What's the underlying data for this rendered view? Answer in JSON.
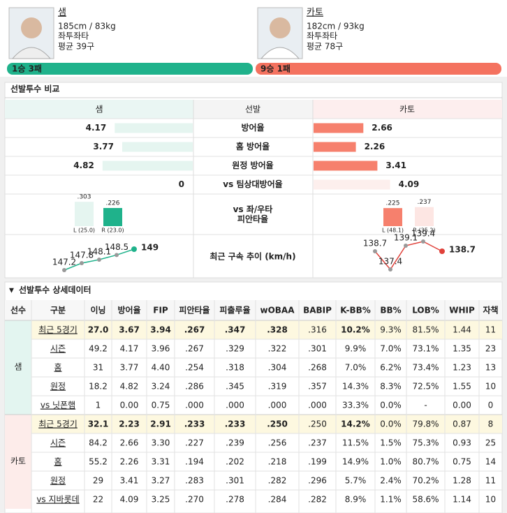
{
  "pitchers": [
    {
      "name": "샘",
      "body": "185cm / 83kg",
      "hand": "좌투좌타",
      "avg_pitches": "평균 39구",
      "record": "1승 3패",
      "color": "#1fb28b"
    },
    {
      "name": "카토",
      "body": "182cm / 93kg",
      "hand": "좌투좌타",
      "avg_pitches": "평균 78구",
      "record": "9승 1패",
      "color": "#f4725f"
    }
  ],
  "comparison": {
    "title": "선발투수 비교",
    "header": [
      "샘",
      "선발",
      "카토"
    ],
    "rows": [
      {
        "label": "방어율",
        "values": [
          4.17,
          2.66
        ]
      },
      {
        "label": "홈 방어율",
        "values": [
          3.77,
          2.26
        ]
      },
      {
        "label": "원정 방어율",
        "values": [
          4.82,
          3.41
        ]
      },
      {
        "label": "vs 팀상대방어율",
        "values": [
          0,
          4.09
        ]
      }
    ],
    "platoon": {
      "label": "vs 좌/우타 피안타율",
      "series": [
        {
          "values": [
            {
              "value": 0.303,
              "label": ".303"
            },
            {
              "value": 0.226,
              "label": ".226"
            }
          ],
          "labels": [
            "L (25.0)",
            "R (23.0)"
          ]
        },
        {
          "values": [
            {
              "value": 0.225,
              "label": ".225"
            },
            {
              "value": 0.237,
              "label": ".237"
            }
          ],
          "labels": [
            "L (48.1)",
            "R (35.2)"
          ]
        }
      ]
    },
    "velocity": {
      "label": "최근 구속 추이 (km/h)",
      "series": [
        {
          "values": [
            147.2,
            147.8,
            148.1,
            148.5,
            149
          ],
          "color": "#1fb28b"
        },
        {
          "values": [
            138.7,
            137.4,
            139.1,
            139.4,
            138.7
          ],
          "color": "#e0413a"
        }
      ]
    }
  },
  "details": {
    "title": "선발투수 상세데이터",
    "header": [
      "선수",
      "구분",
      "이닝",
      "방어율",
      "FIP",
      "피안타율",
      "피출루율",
      "wOBAA",
      "BABIP",
      "K-BB%",
      "BB%",
      "LOB%",
      "WHIP",
      "자책"
    ],
    "players": [
      {
        "name": "샘",
        "highlight_color": "#e53935",
        "rows": [
          [
            "최근 5경기",
            "27.0",
            "3.67",
            "3.94",
            ".267",
            ".347",
            ".328",
            ".316",
            "10.2%",
            "9.3%",
            "81.5%",
            "1.44",
            "11"
          ],
          [
            "시즌",
            "49.2",
            "4.17",
            "3.96",
            ".267",
            ".329",
            ".322",
            ".301",
            "9.9%",
            "7.0%",
            "73.1%",
            "1.35",
            "23"
          ],
          [
            "홈",
            "31",
            "3.77",
            "4.40",
            ".254",
            ".318",
            ".304",
            ".268",
            "7.0%",
            "6.2%",
            "73.4%",
            "1.23",
            "13"
          ],
          [
            "원정",
            "18.2",
            "4.82",
            "3.24",
            ".286",
            ".345",
            ".319",
            ".357",
            "14.3%",
            "8.3%",
            "72.5%",
            "1.55",
            "10"
          ],
          [
            "vs 닛폰햄",
            "1",
            "0.00",
            "0.75",
            ".000",
            ".000",
            ".000",
            ".000",
            "33.3%",
            "0.0%",
            "-",
            "0.00",
            "0"
          ]
        ]
      },
      {
        "name": "카토",
        "highlight_color": "#2e9e3b",
        "rows": [
          [
            "최근 5경기",
            "32.1",
            "2.23",
            "2.91",
            ".233",
            ".233",
            ".250",
            ".250",
            "14.2%",
            "0.0%",
            "79.8%",
            "0.87",
            "8"
          ],
          [
            "시즌",
            "84.2",
            "2.66",
            "3.30",
            ".227",
            ".239",
            ".256",
            ".237",
            "11.5%",
            "1.5%",
            "75.3%",
            "0.93",
            "25"
          ],
          [
            "홈",
            "55.2",
            "2.26",
            "3.31",
            ".194",
            ".202",
            ".218",
            ".199",
            "14.9%",
            "1.0%",
            "80.7%",
            "0.75",
            "14"
          ],
          [
            "원정",
            "29",
            "3.41",
            "3.27",
            ".283",
            ".301",
            ".282",
            ".296",
            "5.7%",
            "2.4%",
            "70.2%",
            "1.28",
            "11"
          ],
          [
            "vs 지바롯데",
            "22",
            "4.09",
            "3.25",
            ".270",
            ".278",
            ".284",
            ".282",
            "8.9%",
            "1.1%",
            "58.6%",
            "1.14",
            "10"
          ]
        ]
      }
    ]
  }
}
